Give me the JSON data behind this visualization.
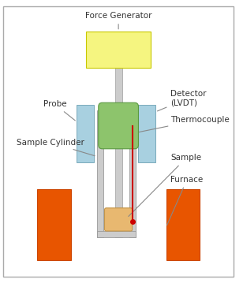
{
  "labels": {
    "force_generator": "Force Generator",
    "detector": "Detector\n(LVDT)",
    "probe": "Probe",
    "thermocouple": "Thermocouple",
    "sample_cylinder": "Sample Cylinder",
    "sample": "Sample",
    "furnace": "Furnace"
  },
  "colors": {
    "force_generator_face": "#f5f580",
    "force_generator_edge": "#c8c800",
    "probe_face": "#a8d0e0",
    "probe_edge": "#7aaabb",
    "lvdt_face": "#8dc46c",
    "lvdt_edge": "#5a9940",
    "shaft_face": "#cccccc",
    "shaft_edge": "#aaaaaa",
    "cylinder_wall_face": "#cccccc",
    "cylinder_wall_edge": "#999999",
    "sample_face": "#e8b870",
    "sample_edge": "#c09040",
    "furnace_face": "#e85500",
    "furnace_edge": "#cc4400",
    "thermocouple_line": "#cc0000",
    "thermocouple_dot": "#cc0000",
    "annotation_line": "#888888",
    "text": "#333333"
  },
  "font_size": 7.5
}
